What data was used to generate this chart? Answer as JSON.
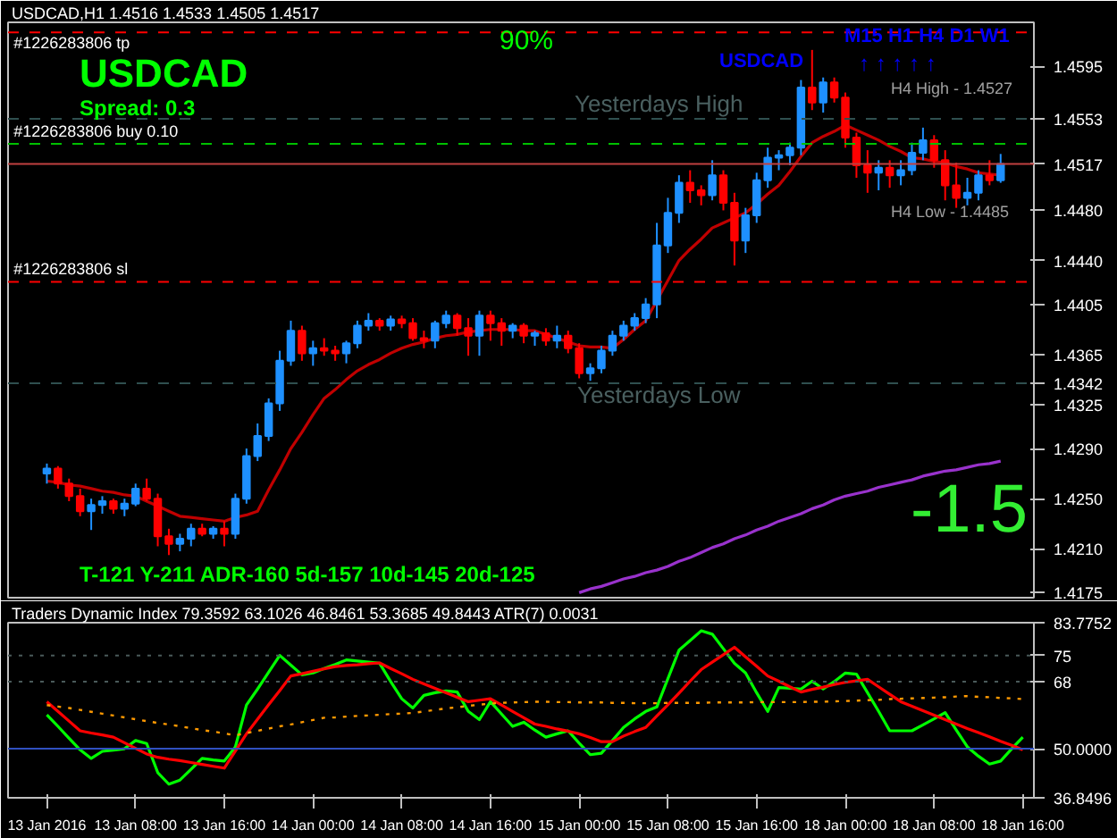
{
  "chart_data": [
    {
      "type": "candlestick",
      "title": "USDCAD,H1 1.4516 1.4533 1.4505 1.4517",
      "categories": [
        null,
        null,
        null,
        null,
        null,
        null,
        null,
        null,
        null,
        null,
        null,
        null,
        null,
        null,
        null,
        null,
        null,
        null,
        null,
        null,
        null,
        null,
        null,
        null,
        null,
        null,
        null,
        null,
        null,
        null,
        null,
        null,
        null,
        null,
        null,
        null,
        null,
        null,
        null,
        null,
        null,
        null,
        null,
        null,
        null,
        null,
        null,
        null,
        null,
        null,
        null,
        null,
        null,
        null,
        null,
        null,
        null,
        null,
        null,
        null,
        null,
        null,
        null,
        null,
        null,
        null,
        null,
        null,
        null,
        null,
        null,
        null,
        null,
        null,
        null,
        null,
        null,
        null,
        null,
        null,
        null,
        null,
        null,
        null,
        null,
        null,
        null,
        null,
        null
      ],
      "ohlc": [
        [
          1.427,
          1.4278,
          1.4262,
          1.4274
        ],
        [
          1.4274,
          1.4276,
          1.4258,
          1.4262
        ],
        [
          1.4262,
          1.4266,
          1.4248,
          1.4252
        ],
        [
          1.4252,
          1.4258,
          1.4236,
          1.424
        ],
        [
          1.424,
          1.425,
          1.4225,
          1.4245
        ],
        [
          1.4245,
          1.4252,
          1.4238,
          1.4248
        ],
        [
          1.4248,
          1.425,
          1.4238,
          1.4242
        ],
        [
          1.4242,
          1.425,
          1.4236,
          1.4246
        ],
        [
          1.4246,
          1.4262,
          1.4244,
          1.4258
        ],
        [
          1.4258,
          1.4266,
          1.4248,
          1.425
        ],
        [
          1.425,
          1.4254,
          1.4212,
          1.422
        ],
        [
          1.422,
          1.4226,
          1.4205,
          1.4214
        ],
        [
          1.4214,
          1.4222,
          1.4208,
          1.4218
        ],
        [
          1.4218,
          1.423,
          1.4212,
          1.4226
        ],
        [
          1.4226,
          1.423,
          1.422,
          1.4222
        ],
        [
          1.4222,
          1.4228,
          1.4218,
          1.4226
        ],
        [
          1.4226,
          1.4232,
          1.4212,
          1.4222
        ],
        [
          1.4222,
          1.4254,
          1.4218,
          1.425
        ],
        [
          1.425,
          1.429,
          1.4246,
          1.4284
        ],
        [
          1.4284,
          1.431,
          1.428,
          1.43
        ],
        [
          1.43,
          1.433,
          1.4296,
          1.4326
        ],
        [
          1.4326,
          1.4368,
          1.432,
          1.436
        ],
        [
          1.436,
          1.4392,
          1.4356,
          1.4384
        ],
        [
          1.4384,
          1.4388,
          1.436,
          1.4366
        ],
        [
          1.4366,
          1.4376,
          1.4356,
          1.437
        ],
        [
          1.437,
          1.4378,
          1.4364,
          1.4368
        ],
        [
          1.4368,
          1.4372,
          1.436,
          1.4366
        ],
        [
          1.4366,
          1.4376,
          1.4358,
          1.4374
        ],
        [
          1.4374,
          1.4392,
          1.437,
          1.4388
        ],
        [
          1.4388,
          1.4398,
          1.4384,
          1.4392
        ],
        [
          1.4392,
          1.4394,
          1.4384,
          1.4388
        ],
        [
          1.4388,
          1.4396,
          1.4384,
          1.4393
        ],
        [
          1.4393,
          1.4396,
          1.4386,
          1.439
        ],
        [
          1.439,
          1.4394,
          1.4376,
          1.4378
        ],
        [
          1.4378,
          1.4384,
          1.437,
          1.4376
        ],
        [
          1.4376,
          1.4392,
          1.437,
          1.439
        ],
        [
          1.439,
          1.44,
          1.4386,
          1.4396
        ],
        [
          1.4396,
          1.4398,
          1.438,
          1.4386
        ],
        [
          1.4386,
          1.4394,
          1.4364,
          1.438
        ],
        [
          1.438,
          1.44,
          1.4364,
          1.4396
        ],
        [
          1.4396,
          1.44,
          1.4376,
          1.439
        ],
        [
          1.439,
          1.4394,
          1.4372,
          1.4384
        ],
        [
          1.4384,
          1.439,
          1.4378,
          1.4388
        ],
        [
          1.4388,
          1.439,
          1.4374,
          1.438
        ],
        [
          1.438,
          1.4384,
          1.4372,
          1.4382
        ],
        [
          1.4382,
          1.4386,
          1.4372,
          1.4376
        ],
        [
          1.4376,
          1.4388,
          1.437,
          1.438
        ],
        [
          1.438,
          1.4384,
          1.4366,
          1.437
        ],
        [
          1.437,
          1.4374,
          1.4346,
          1.435
        ],
        [
          1.435,
          1.4358,
          1.4344,
          1.4354
        ],
        [
          1.4354,
          1.4372,
          1.435,
          1.4368
        ],
        [
          1.4368,
          1.4384,
          1.4364,
          1.438
        ],
        [
          1.438,
          1.4392,
          1.4376,
          1.4388
        ],
        [
          1.4388,
          1.4398,
          1.4384,
          1.4394
        ],
        [
          1.4394,
          1.441,
          1.439,
          1.4405
        ],
        [
          1.4405,
          1.447,
          1.4394,
          1.4452
        ],
        [
          1.4452,
          1.449,
          1.4446,
          1.4478
        ],
        [
          1.4478,
          1.4508,
          1.447,
          1.4502
        ],
        [
          1.4502,
          1.4512,
          1.4486,
          1.4496
        ],
        [
          1.4496,
          1.45,
          1.4484,
          1.4492
        ],
        [
          1.4492,
          1.452,
          1.4488,
          1.4508
        ],
        [
          1.4508,
          1.4512,
          1.448,
          1.4486
        ],
        [
          1.4486,
          1.4494,
          1.4436,
          1.4456
        ],
        [
          1.4456,
          1.4482,
          1.4446,
          1.4476
        ],
        [
          1.4476,
          1.451,
          1.447,
          1.4504
        ],
        [
          1.4504,
          1.453,
          1.4498,
          1.4522
        ],
        [
          1.4522,
          1.4528,
          1.4512,
          1.4524
        ],
        [
          1.4524,
          1.4534,
          1.4516,
          1.453
        ],
        [
          1.453,
          1.4584,
          1.4524,
          1.4578
        ],
        [
          1.4578,
          1.4608,
          1.456,
          1.4566
        ],
        [
          1.4566,
          1.4586,
          1.4558,
          1.4582
        ],
        [
          1.4582,
          1.4586,
          1.4566,
          1.457
        ],
        [
          1.457,
          1.4574,
          1.453,
          1.4538
        ],
        [
          1.4538,
          1.4542,
          1.4506,
          1.4516
        ],
        [
          1.4516,
          1.4528,
          1.4494,
          1.451
        ],
        [
          1.451,
          1.452,
          1.4496,
          1.4514
        ],
        [
          1.4514,
          1.452,
          1.4498,
          1.4508
        ],
        [
          1.4508,
          1.452,
          1.45,
          1.4512
        ],
        [
          1.4512,
          1.4534,
          1.4508,
          1.4526
        ],
        [
          1.4526,
          1.4546,
          1.452,
          1.4536
        ],
        [
          1.4536,
          1.454,
          1.4514,
          1.452
        ],
        [
          1.452,
          1.4528,
          1.4488,
          1.45
        ],
        [
          1.45,
          1.4518,
          1.4482,
          1.449
        ],
        [
          1.449,
          1.4506,
          1.4484,
          1.4494
        ],
        [
          1.4494,
          1.4512,
          1.4488,
          1.4508
        ],
        [
          1.4508,
          1.452,
          1.45,
          1.4504
        ],
        [
          1.4504,
          1.4525,
          1.4502,
          1.4517
        ],
        null,
        null
      ],
      "colors": [
        "#1e90ff",
        "#ff0000",
        "#ff0000",
        "#ff0000",
        "#1e90ff",
        "#1e90ff",
        "#ff0000",
        "#1e90ff",
        "#1e90ff",
        "#ff0000",
        "#ff0000",
        "#ff0000",
        "#1e90ff",
        "#1e90ff",
        "#ff0000",
        "#1e90ff",
        "#ff0000",
        "#1e90ff",
        "#1e90ff",
        "#1e90ff",
        "#1e90ff",
        "#1e90ff",
        "#1e90ff",
        "#ff0000",
        "#1e90ff",
        "#ff0000",
        "#ff0000",
        "#1e90ff",
        "#1e90ff",
        "#1e90ff",
        "#ff0000",
        "#1e90ff",
        "#ff0000",
        "#ff0000",
        "#ff0000",
        "#1e90ff",
        "#1e90ff",
        "#ff0000",
        "#ff0000",
        "#1e90ff",
        "#ff0000",
        "#ff0000",
        "#1e90ff",
        "#ff0000",
        "#1e90ff",
        "#ff0000",
        "#1e90ff",
        "#ff0000",
        "#ff0000",
        "#1e90ff",
        "#1e90ff",
        "#1e90ff",
        "#1e90ff",
        "#1e90ff",
        "#1e90ff",
        "#1e90ff",
        "#1e90ff",
        "#1e90ff",
        "#ff0000",
        "#ff0000",
        "#1e90ff",
        "#ff0000",
        "#ff0000",
        "#1e90ff",
        "#1e90ff",
        "#1e90ff",
        "#1e90ff",
        "#1e90ff",
        "#1e90ff",
        "#ff0000",
        "#1e90ff",
        "#ff0000",
        "#ff0000",
        "#ff0000",
        "#ff0000",
        "#1e90ff",
        "#ff0000",
        "#1e90ff",
        "#1e90ff",
        "#1e90ff",
        "#ff0000",
        "#ff0000",
        "#ff0000",
        "#1e90ff",
        "#1e90ff",
        "#ff0000",
        "#1e90ff",
        null,
        null
      ],
      "series": [
        {
          "type": "line",
          "color": "#c00000",
          "values": [
            1.4264,
            1.4263,
            1.4261,
            1.426,
            1.4258,
            1.4256,
            1.4255,
            1.4253,
            1.4252,
            1.4248,
            1.4244,
            1.424,
            1.4236,
            1.4235,
            1.4234,
            1.4233,
            1.4232,
            1.4235,
            1.4237,
            1.424,
            1.4257,
            1.4273,
            1.429,
            1.4303,
            1.4317,
            1.433,
            1.4337,
            1.4345,
            1.4352,
            1.4357,
            1.4361,
            1.4366,
            1.437,
            1.4373,
            1.4375,
            1.4378,
            1.438,
            1.4381,
            1.4383,
            1.4384,
            1.4385,
            1.4385,
            1.4385,
            1.4384,
            1.4384,
            1.4381,
            1.4378,
            1.4375,
            1.4372,
            1.4371,
            1.4371,
            1.437,
            1.4377,
            1.4385,
            1.4392,
            1.4408,
            1.4424,
            1.444,
            1.4449,
            1.4457,
            1.4466,
            1.447,
            1.4474,
            1.4478,
            1.4485,
            1.4493,
            1.45,
            1.4511,
            1.4523,
            1.4534,
            1.4539,
            1.4543,
            1.4548,
            1.4544,
            1.454,
            1.4536,
            1.4531,
            1.4527,
            1.4522,
            1.4521,
            1.4519,
            1.4518,
            1.4515,
            1.4513,
            1.451,
            1.4509,
            1.4508,
            null,
            null
          ]
        },
        {
          "type": "line",
          "color": "#9932cc",
          "values": [
            null,
            null,
            null,
            null,
            null,
            null,
            null,
            null,
            null,
            null,
            null,
            null,
            null,
            null,
            null,
            null,
            null,
            null,
            null,
            null,
            null,
            null,
            null,
            null,
            null,
            null,
            null,
            null,
            null,
            null,
            null,
            null,
            null,
            null,
            null,
            null,
            null,
            null,
            null,
            null,
            null,
            null,
            null,
            null,
            null,
            null,
            null,
            null,
            1.4175,
            1.4178,
            1.418,
            1.4183,
            1.4186,
            1.4188,
            1.4191,
            1.4193,
            1.4196,
            1.42,
            1.4203,
            1.4207,
            1.4211,
            1.4214,
            1.4218,
            1.4221,
            1.4225,
            1.4228,
            1.4232,
            1.4235,
            1.4238,
            1.4242,
            1.4245,
            1.4249,
            1.4252,
            1.4254,
            1.4256,
            1.4259,
            1.4261,
            1.4263,
            1.4265,
            1.4268,
            1.427,
            1.4272,
            1.4273,
            1.4275,
            1.4277,
            1.4278,
            1.428,
            null,
            null
          ]
        }
      ],
      "ref_lines": [
        {
          "axis": "y",
          "value": 1.4622,
          "label": "#1226283806 tp",
          "color": "#ff0000",
          "line_style": "dashed"
        },
        {
          "axis": "y",
          "value": 1.4533,
          "label": "#1226283806 buy 0.10",
          "color": "#00c000",
          "line_style": "dashed"
        },
        {
          "axis": "y",
          "value": 1.4423,
          "label": "#1226283806 sl",
          "color": "#ff0000",
          "line_style": "dashed"
        },
        {
          "axis": "y",
          "value": 1.4553,
          "label": "Yesterdays High",
          "color": "#2f4f4f",
          "line_style": "dashed"
        },
        {
          "axis": "y",
          "value": 1.4342,
          "label": "Yesterdays Low",
          "color": "#2f4f4f",
          "line_style": "dashed"
        },
        {
          "axis": "y",
          "value": 1.4517,
          "label": null,
          "color": "#c04040",
          "line_style": "solid"
        }
      ],
      "annotations": [
        "USDCAD",
        "Spread: 0.3",
        "90%",
        "USDCAD",
        "M15 H1 H4 D1 W1",
        "↑ ↑ ↑ ↑ ↑",
        "-1.5",
        "T-121 Y-211 ADR-160 5d-157 10d-145 20d-125",
        "H4 High - 1.4527",
        "H4 Low - 1.4485"
      ],
      "ylim": [
        1.4171,
        1.463
      ],
      "yticks": [
        {
          "value": 1.4595,
          "label": "1.4595"
        },
        {
          "value": 1.4553,
          "label": "1.4553"
        },
        {
          "value": 1.4517,
          "label": "1.4517"
        },
        {
          "value": 1.448,
          "label": "1.4480"
        },
        {
          "value": 1.444,
          "label": "1.4440"
        },
        {
          "value": 1.4405,
          "label": "1.4405"
        },
        {
          "value": 1.4365,
          "label": "1.4365"
        },
        {
          "value": 1.4342,
          "label": "1.4342"
        },
        {
          "value": 1.4325,
          "label": "1.4325"
        },
        {
          "value": 1.429,
          "label": "1.4290"
        },
        {
          "value": 1.425,
          "label": "1.4250"
        },
        {
          "value": 1.421,
          "label": "1.4210"
        },
        {
          "value": 1.4175,
          "label": "1.4175"
        }
      ],
      "tick_labels": "y"
    },
    {
      "type": "line",
      "title": "Traders Dynamic Index 79.3592 63.1026 46.8461 53.3685 49.8443 ATR(7) 0.0031",
      "categories": [
        "13 Jan 2016",
        null,
        null,
        null,
        null,
        null,
        null,
        null,
        "13 Jan 08:00",
        null,
        null,
        null,
        null,
        null,
        null,
        null,
        "13 Jan 16:00",
        null,
        null,
        null,
        null,
        null,
        null,
        null,
        "14 Jan 00:00",
        null,
        null,
        null,
        null,
        null,
        null,
        null,
        "14 Jan 08:00",
        null,
        null,
        null,
        null,
        null,
        null,
        null,
        "14 Jan 16:00",
        null,
        null,
        null,
        null,
        null,
        null,
        null,
        "15 Jan 00:00",
        null,
        null,
        null,
        null,
        null,
        null,
        null,
        "15 Jan 08:00",
        null,
        null,
        null,
        null,
        null,
        null,
        null,
        "15 Jan 16:00",
        null,
        null,
        null,
        null,
        null,
        null,
        null,
        "18 Jan 00:00",
        null,
        null,
        null,
        null,
        null,
        null,
        null,
        "18 Jan 08:00",
        null,
        null,
        null,
        null,
        null,
        null,
        null,
        "18 Jan 16:00"
      ],
      "series": [
        {
          "color": "#00ff00",
          "values": [
            59.1,
            56,
            52.8,
            49.7,
            47.4,
            49.3,
            49.6,
            50,
            52.2,
            51.4,
            43.6,
            40.5,
            41.6,
            44.5,
            47.4,
            47,
            46.7,
            50.5,
            61.7,
            66,
            70.5,
            75,
            72.4,
            69.8,
            70.3,
            71.5,
            72.6,
            73.8,
            73.5,
            73.2,
            72.9,
            68,
            63.4,
            60.9,
            64.3,
            65,
            65.5,
            65.2,
            60,
            57.8,
            62.6,
            59.3,
            56,
            57.1,
            55,
            53.1,
            54,
            54.8,
            51.5,
            48.4,
            48.8,
            52.2,
            55.7,
            58,
            60,
            61.2,
            68.8,
            76.4,
            79,
            81.6,
            80.7,
            76.8,
            72.9,
            70.3,
            65,
            60,
            66.4,
            66.2,
            66,
            68.1,
            66,
            68,
            70.3,
            70,
            65,
            60,
            54.8,
            54.8,
            54.8,
            56.4,
            58,
            59.7,
            55,
            50.5,
            48,
            45.9,
            46.7,
            50,
            53.1
          ]
        },
        {
          "color": "#ff0000",
          "values": [
            62.6,
            60,
            57.4,
            54.8,
            54.2,
            53.7,
            53.1,
            51.6,
            50.1,
            48.6,
            47.7,
            47.2,
            46.8,
            46.3,
            45.8,
            45.3,
            44.8,
            49.4,
            54,
            57.9,
            61.8,
            65.6,
            69.5,
            70.1,
            70.8,
            71.4,
            72,
            72.3,
            72.5,
            72.8,
            73,
            71.5,
            70.1,
            68.6,
            67.4,
            66.2,
            65,
            63.8,
            62.6,
            63,
            63.4,
            61.7,
            60,
            58.3,
            56.6,
            56,
            55.3,
            54.7,
            54,
            53,
            51.9,
            51.9,
            53.4,
            54.6,
            55.7,
            58.8,
            61.8,
            64.9,
            68.1,
            71.2,
            73.2,
            75.2,
            77.2,
            74.6,
            72.1,
            69.5,
            68.1,
            66.6,
            65.2,
            65.9,
            66.5,
            67.2,
            67.8,
            68.2,
            68.6,
            66.6,
            64.6,
            62.6,
            61.4,
            60.2,
            59,
            57.8,
            56.6,
            55.4,
            54.3,
            53.2,
            52,
            50.9,
            49.7
          ]
        },
        {
          "color": "#ff9900",
          "line_style": "dotted",
          "values": [
            61.7,
            61.3,
            60.9,
            60.4,
            59.9,
            59.4,
            58.9,
            58.4,
            57.9,
            57.4,
            56.9,
            56.5,
            56,
            55.5,
            55,
            54.6,
            54.1,
            53.6,
            54.2,
            54.8,
            55.4,
            56,
            56.5,
            57.1,
            57.7,
            58.3,
            58.4,
            58.6,
            58.8,
            58.9,
            59.1,
            59.3,
            59.4,
            59.6,
            60,
            60.4,
            60.8,
            61.1,
            61.5,
            61.8,
            62.1,
            62.3,
            62.4,
            62.5,
            62.6,
            62.6,
            62.5,
            62.5,
            62.4,
            62.4,
            62.4,
            62.3,
            62.3,
            62.2,
            62.2,
            62.2,
            62.3,
            62.3,
            62.3,
            62.3,
            62.4,
            62.4,
            62.4,
            62.4,
            62.5,
            62.5,
            62.5,
            62.5,
            62.5,
            62.6,
            62.6,
            62.7,
            62.8,
            62.9,
            63,
            63.1,
            63.3,
            63.4,
            63.5,
            63.6,
            63.7,
            63.8,
            64,
            64.1,
            63.9,
            63.8,
            63.6,
            63.5,
            63.3
          ]
        }
      ],
      "ref_lines": [
        {
          "axis": "y",
          "value": 75,
          "label": null,
          "color": "#4a5a5a",
          "line_style": "dotted"
        },
        {
          "axis": "y",
          "value": 68,
          "label": null,
          "color": "#4a5a5a",
          "line_style": "dotted"
        },
        {
          "axis": "y",
          "value": 50,
          "label": null,
          "color": "#3050c0",
          "line_style": "solid"
        }
      ],
      "ylim": [
        36.8496,
        83.7752
      ],
      "yticks": [
        {
          "value": 36.8496,
          "label": "36.8496"
        },
        {
          "value": 50,
          "label": "50.0000"
        },
        68,
        75,
        {
          "value": 83.7752,
          "label": "83.7752"
        }
      ]
    }
  ]
}
